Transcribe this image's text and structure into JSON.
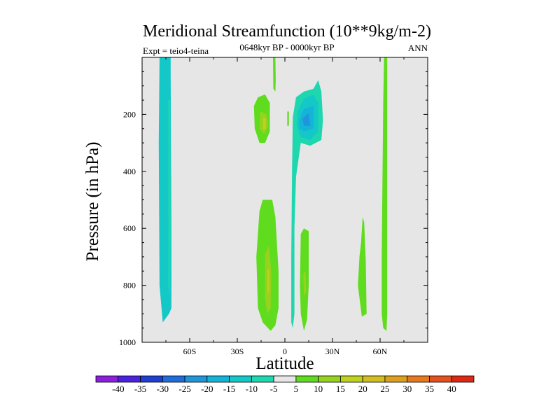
{
  "chart_data": {
    "type": "contour",
    "title": "Meridional Streamfunction (10**9kg/m-2)",
    "subtitle": "0648kyr BP - 0000kyr BP",
    "left_label": "Expt = teio4-teina",
    "right_label": "ANN",
    "xlabel": "Latitude",
    "ylabel": "Pressure (in hPa)",
    "xlim": [
      -90,
      90
    ],
    "ylim": [
      1000,
      0
    ],
    "x_ticks": [
      {
        "value": -60,
        "label": "60S"
      },
      {
        "value": -30,
        "label": "30S"
      },
      {
        "value": 0,
        "label": "0"
      },
      {
        "value": 30,
        "label": "30N"
      },
      {
        "value": 60,
        "label": "60N"
      }
    ],
    "y_ticks": [
      {
        "value": 200,
        "label": "200"
      },
      {
        "value": 400,
        "label": "400"
      },
      {
        "value": 600,
        "label": "600"
      },
      {
        "value": 800,
        "label": "800"
      },
      {
        "value": 1000,
        "label": "1000"
      }
    ],
    "background_color": "#e6e6e6",
    "colorbar": {
      "levels": [
        "-40",
        "-35",
        "-30",
        "-25",
        "-20",
        "-15",
        "-10",
        "-5",
        "5",
        "10",
        "15",
        "20",
        "25",
        "30",
        "35",
        "40"
      ],
      "colors": [
        "#8c1fdc",
        "#4b22e0",
        "#1e3fd2",
        "#1f6ddc",
        "#1f96dc",
        "#14b4d7",
        "#14c8c8",
        "#1ed7af",
        "#e6e6e6",
        "#5fdc1e",
        "#96d21e",
        "#bed21e",
        "#d2be1e",
        "#dca01e",
        "#e6781e",
        "#e6501e",
        "#dc2814"
      ]
    },
    "features": [
      {
        "name": "sh-column",
        "level": "-10",
        "color": "#14c8c8",
        "outline": [
          [
            -79,
            0
          ],
          [
            -72,
            0
          ],
          [
            -72,
            50
          ],
          [
            -71.5,
            600
          ],
          [
            -71.5,
            880
          ],
          [
            -73,
            900
          ],
          [
            -77,
            930
          ],
          [
            -79,
            800
          ],
          [
            -79.5,
            300
          ]
        ]
      },
      {
        "name": "sh-column-core",
        "level": "-5",
        "color": "#1ed7af",
        "outline": [
          [
            -73.5,
            150
          ],
          [
            -72.3,
            150
          ],
          [
            -72,
            600
          ],
          [
            -72.5,
            850
          ],
          [
            -73.5,
            800
          ]
        ]
      },
      {
        "name": "upper-positive-cell",
        "level": "10",
        "color": "#5fdc1e",
        "outline": [
          [
            -17,
            140
          ],
          [
            -12.5,
            130
          ],
          [
            -9.5,
            160
          ],
          [
            -9.5,
            260
          ],
          [
            -12.5,
            300
          ],
          [
            -16,
            300
          ],
          [
            -19,
            250
          ],
          [
            -19.5,
            170
          ]
        ]
      },
      {
        "name": "upper-positive-cell-mid",
        "level": "15",
        "color": "#96d21e",
        "outline": [
          [
            -15.5,
            190
          ],
          [
            -11.5,
            200
          ],
          [
            -10.5,
            240
          ],
          [
            -13,
            270
          ],
          [
            -16,
            250
          ]
        ]
      },
      {
        "name": "upper-positive-cell-core",
        "level": "20",
        "color": "#bed21e",
        "outline": [
          [
            -13.8,
            210
          ],
          [
            -12,
            215
          ],
          [
            -12,
            250
          ],
          [
            -13.8,
            255
          ]
        ]
      },
      {
        "name": "upper-negative-cell",
        "level": "-5",
        "color": "#1ed7af",
        "outline": [
          [
            5,
            210
          ],
          [
            7,
            140
          ],
          [
            12,
            120
          ],
          [
            18,
            110
          ],
          [
            21,
            80
          ],
          [
            23,
            120
          ],
          [
            24,
            220
          ],
          [
            23,
            290
          ],
          [
            16,
            310
          ],
          [
            10,
            300
          ],
          [
            7,
            420
          ],
          [
            6,
            600
          ],
          [
            6,
            900
          ],
          [
            5,
            950
          ],
          [
            4,
            930
          ],
          [
            4,
            700
          ],
          [
            4.5,
            400
          ]
        ]
      },
      {
        "name": "upper-negative-cell-mid",
        "level": "-10",
        "color": "#14c8c8",
        "outline": [
          [
            8,
            190
          ],
          [
            12,
            145
          ],
          [
            18,
            130
          ],
          [
            21,
            160
          ],
          [
            21,
            260
          ],
          [
            16,
            290
          ],
          [
            10,
            280
          ],
          [
            7.5,
            240
          ]
        ]
      },
      {
        "name": "upper-negative-cell-core",
        "level": "-15",
        "color": "#14b4d7",
        "outline": [
          [
            9,
            220
          ],
          [
            12,
            180
          ],
          [
            18,
            170
          ],
          [
            18,
            250
          ],
          [
            12,
            260
          ],
          [
            9,
            250
          ]
        ]
      },
      {
        "name": "upper-negative-cell-peak",
        "level": "-20",
        "color": "#1f96dc",
        "outline": [
          [
            11,
            215
          ],
          [
            15,
            195
          ],
          [
            16,
            240
          ],
          [
            12,
            240
          ]
        ]
      },
      {
        "name": "lower-positive-cell",
        "level": "10",
        "color": "#5fdc1e",
        "outline": [
          [
            -16,
            540
          ],
          [
            -14,
            500
          ],
          [
            -8,
            500
          ],
          [
            -6,
            560
          ],
          [
            -4,
            750
          ],
          [
            -4,
            880
          ],
          [
            -6,
            940
          ],
          [
            -9,
            960
          ],
          [
            -14,
            930
          ],
          [
            -17,
            880
          ],
          [
            -18,
            700
          ]
        ]
      },
      {
        "name": "lower-positive-cell-mid",
        "level": "15",
        "color": "#96d21e",
        "outline": [
          [
            -12.5,
            690
          ],
          [
            -10,
            660
          ],
          [
            -8.5,
            760
          ],
          [
            -9,
            880
          ],
          [
            -11,
            900
          ],
          [
            -12.5,
            850
          ]
        ]
      },
      {
        "name": "lower-positive-cell-core",
        "level": "20",
        "color": "#bed21e",
        "outline": [
          [
            -11,
            750
          ],
          [
            -10,
            740
          ],
          [
            -9.8,
            820
          ],
          [
            -11,
            830
          ]
        ]
      },
      {
        "name": "narrow-positive-cell",
        "level": "10",
        "color": "#5fdc1e",
        "outline": [
          [
            10,
            620
          ],
          [
            12,
            600
          ],
          [
            15,
            610
          ],
          [
            15,
            800
          ],
          [
            14,
            920
          ],
          [
            12,
            960
          ],
          [
            10,
            900
          ],
          [
            9.5,
            800
          ]
        ]
      },
      {
        "name": "narrow-positive-cell-core",
        "level": "15",
        "color": "#96d21e",
        "outline": [
          [
            11.5,
            760
          ],
          [
            13,
            750
          ],
          [
            13.5,
            820
          ],
          [
            12,
            840
          ]
        ]
      },
      {
        "name": "nh-midlat-cell",
        "level": "10",
        "color": "#5fdc1e",
        "outline": [
          [
            48,
            650
          ],
          [
            49,
            560
          ],
          [
            50,
            580
          ],
          [
            51,
            720
          ],
          [
            51.5,
            900
          ],
          [
            48.5,
            910
          ],
          [
            46,
            800
          ],
          [
            47,
            700
          ]
        ]
      },
      {
        "name": "nh-column",
        "level": "10",
        "color": "#5fdc1e",
        "outline": [
          [
            62.5,
            0
          ],
          [
            64.5,
            0
          ],
          [
            64.5,
            900
          ],
          [
            64,
            960
          ],
          [
            62,
            950
          ],
          [
            61,
            900
          ],
          [
            61,
            700
          ],
          [
            62,
            150
          ]
        ]
      },
      {
        "name": "upper-streak-a",
        "level": "10",
        "color": "#5fdc1e",
        "outline": [
          [
            -7.5,
            0
          ],
          [
            -6,
            0
          ],
          [
            -5.8,
            80
          ],
          [
            -6,
            120
          ],
          [
            -7.3,
            110
          ]
        ]
      },
      {
        "name": "upper-streak-b",
        "level": "10",
        "color": "#5fdc1e",
        "outline": [
          [
            1.5,
            190
          ],
          [
            2.5,
            190
          ],
          [
            2.5,
            240
          ],
          [
            1.5,
            240
          ]
        ]
      }
    ]
  }
}
